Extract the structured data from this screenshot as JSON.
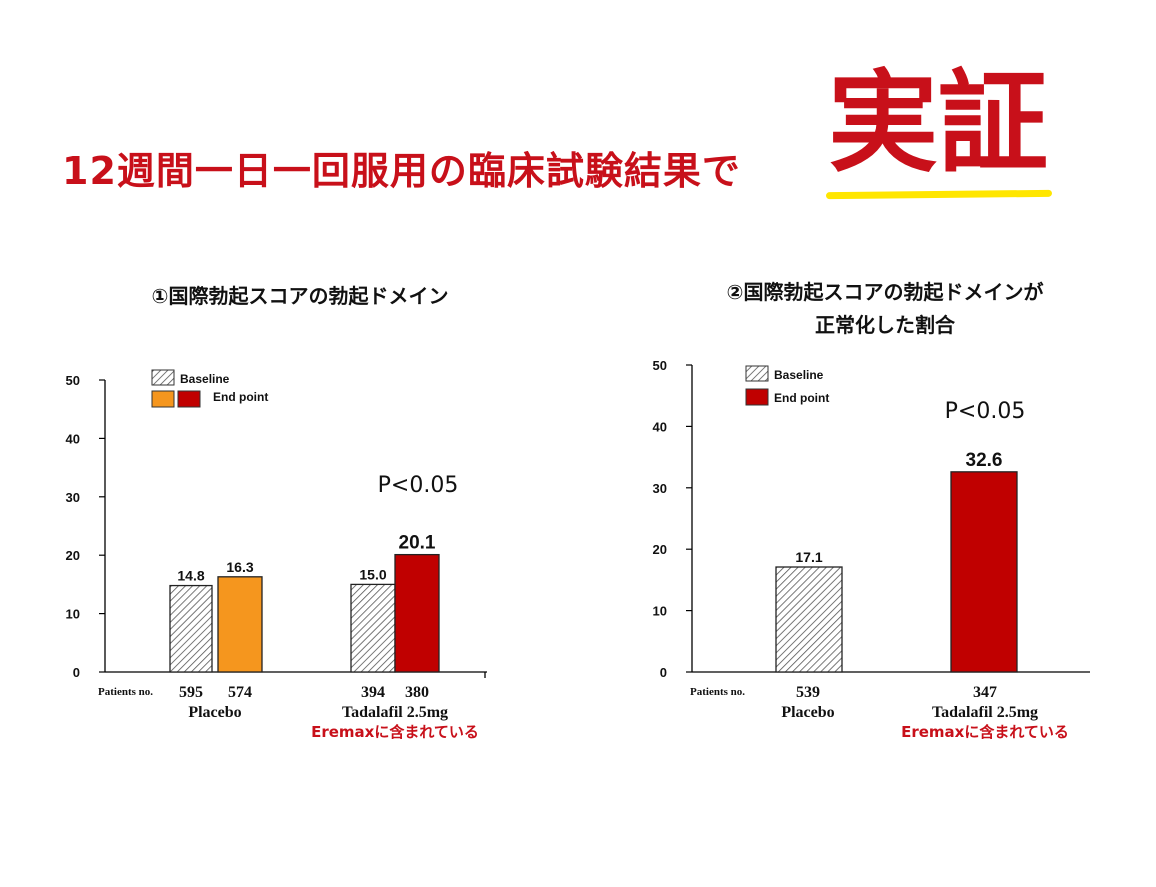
{
  "header": {
    "headline": "12週間一日一回服用の臨床試験結果で",
    "emphasis": "実証"
  },
  "colors": {
    "accent_red": "#c8101a",
    "bar_red": "#c00000",
    "bar_orange": "#f5961e",
    "highlight_yellow": "#ffe600"
  },
  "chart_data": [
    {
      "type": "bar",
      "title": "①国際勃起スコアの勃起ドメイン",
      "ylim": [
        0,
        50
      ],
      "yticks": [
        "0",
        "10",
        "20",
        "30",
        "40",
        "50"
      ],
      "legend": {
        "placement": "top-left",
        "baseline": "Baseline",
        "endpoint": "End point"
      },
      "patients_label": "Patients no.",
      "p_value": "P<0.05",
      "groups": [
        {
          "name": "Placebo",
          "note": "",
          "bars": [
            {
              "series": "Baseline",
              "value": 14.8,
              "label": "14.8",
              "n": "595",
              "style": "hatch"
            },
            {
              "series": "End point",
              "value": 16.3,
              "label": "16.3",
              "n": "574",
              "style": "orange"
            }
          ]
        },
        {
          "name": "Tadalafil 2.5mg",
          "note": "Eremaxに含まれている",
          "bars": [
            {
              "series": "Baseline",
              "value": 15.0,
              "label": "15.0",
              "n": "394",
              "style": "hatch"
            },
            {
              "series": "End point",
              "value": 20.1,
              "label": "20.1",
              "n": "380",
              "style": "red"
            }
          ]
        }
      ]
    },
    {
      "type": "bar",
      "title": "②国際勃起スコアの勃起ドメインが 正常化した割合",
      "title_lines": [
        "②国際勃起スコアの勃起ドメインが",
        "正常化した割合"
      ],
      "ylim": [
        0,
        50
      ],
      "yticks": [
        "0",
        "10",
        "20",
        "30",
        "40",
        "50"
      ],
      "legend": {
        "placement": "top-left",
        "baseline": "Baseline",
        "endpoint": "End point"
      },
      "patients_label": "Patients no.",
      "p_value": "P<0.05",
      "groups": [
        {
          "name": "Placebo",
          "note": "",
          "bars": [
            {
              "series": "Placebo",
              "value": 17.1,
              "label": "17.1",
              "n": "539",
              "style": "hatch"
            }
          ]
        },
        {
          "name": "Tadalafil 2.5mg",
          "note": "Eremaxに含まれている",
          "bars": [
            {
              "series": "Tadalafil 2.5mg",
              "value": 32.6,
              "label": "32.6",
              "n": "347",
              "style": "red"
            }
          ]
        }
      ]
    }
  ]
}
